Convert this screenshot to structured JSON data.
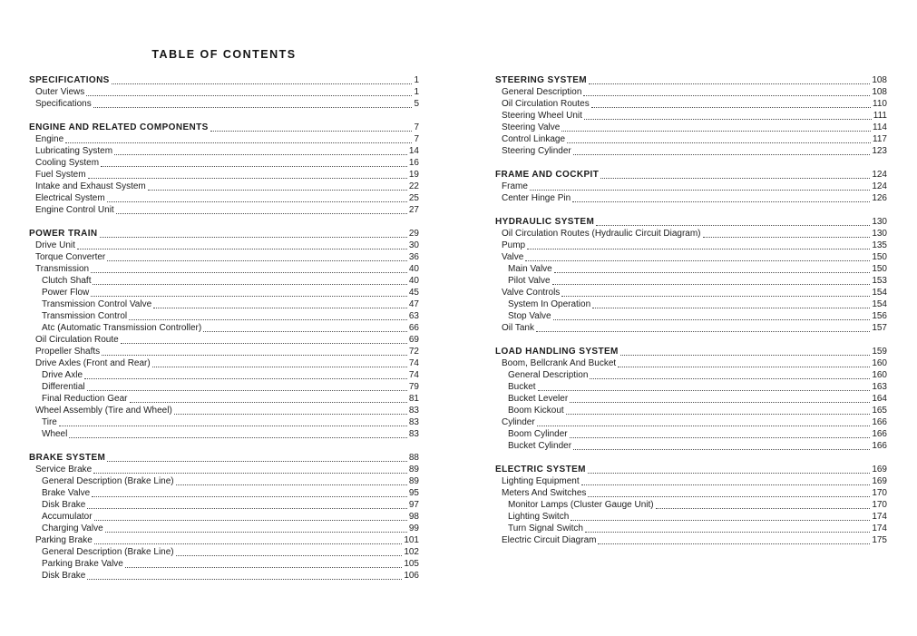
{
  "title": "TABLE OF CONTENTS",
  "columns": [
    {
      "sections": [
        {
          "entries": [
            {
              "label": "SPECIFICATIONS",
              "page": "1",
              "level": 0
            },
            {
              "label": "Outer Views",
              "page": "1",
              "level": 1
            },
            {
              "label": "Specifications",
              "page": "5",
              "level": 1
            }
          ]
        },
        {
          "entries": [
            {
              "label": "ENGINE AND RELATED COMPONENTS",
              "page": "7",
              "level": 0
            },
            {
              "label": "Engine",
              "page": "7",
              "level": 1
            },
            {
              "label": "Lubricating System",
              "page": "14",
              "level": 1
            },
            {
              "label": "Cooling System",
              "page": "16",
              "level": 1
            },
            {
              "label": "Fuel System",
              "page": "19",
              "level": 1
            },
            {
              "label": "Intake and Exhaust System",
              "page": "22",
              "level": 1
            },
            {
              "label": "Electrical System",
              "page": "25",
              "level": 1
            },
            {
              "label": "Engine Control Unit",
              "page": "27",
              "level": 1
            }
          ]
        },
        {
          "entries": [
            {
              "label": "POWER TRAIN",
              "page": "29",
              "level": 0
            },
            {
              "label": "Drive Unit",
              "page": "30",
              "level": 1
            },
            {
              "label": "Torque Converter",
              "page": "36",
              "level": 1
            },
            {
              "label": "Transmission",
              "page": "40",
              "level": 1
            },
            {
              "label": "Clutch Shaft",
              "page": "40",
              "level": 2
            },
            {
              "label": "Power Flow",
              "page": "45",
              "level": 2
            },
            {
              "label": "Transmission Control Valve",
              "page": "47",
              "level": 2
            },
            {
              "label": "Transmission Control",
              "page": "63",
              "level": 2
            },
            {
              "label": "Atc (Automatic Transmission Controller)",
              "page": "66",
              "level": 2
            },
            {
              "label": "Oil Circulation Route",
              "page": "69",
              "level": 1
            },
            {
              "label": "Propeller Shafts",
              "page": "72",
              "level": 1
            },
            {
              "label": "Drive Axles (Front and Rear)",
              "page": "74",
              "level": 1
            },
            {
              "label": "Drive Axle",
              "page": "74",
              "level": 2
            },
            {
              "label": "Differential",
              "page": "79",
              "level": 2
            },
            {
              "label": "Final Reduction Gear",
              "page": "81",
              "level": 2
            },
            {
              "label": "Wheel Assembly (Tire and Wheel)",
              "page": "83",
              "level": 1
            },
            {
              "label": "Tire",
              "page": "83",
              "level": 2
            },
            {
              "label": "Wheel",
              "page": "83",
              "level": 2
            }
          ]
        },
        {
          "entries": [
            {
              "label": "BRAKE SYSTEM",
              "page": "88",
              "level": 0
            },
            {
              "label": "Service Brake",
              "page": "89",
              "level": 1
            },
            {
              "label": "General Description (Brake Line)",
              "page": "89",
              "level": 2
            },
            {
              "label": "Brake Valve",
              "page": "95",
              "level": 2
            },
            {
              "label": "Disk Brake",
              "page": "97",
              "level": 2
            },
            {
              "label": "Accumulator",
              "page": "98",
              "level": 2
            },
            {
              "label": "Charging Valve",
              "page": "99",
              "level": 2
            },
            {
              "label": "Parking Brake",
              "page": "101",
              "level": 1
            },
            {
              "label": "General Description (Brake Line)",
              "page": "102",
              "level": 2
            },
            {
              "label": "Parking Brake Valve",
              "page": "105",
              "level": 2
            },
            {
              "label": "Disk Brake",
              "page": "106",
              "level": 2
            }
          ]
        }
      ]
    },
    {
      "sections": [
        {
          "entries": [
            {
              "label": "STEERING SYSTEM",
              "page": "108",
              "level": 0
            },
            {
              "label": "General Description",
              "page": "108",
              "level": 1
            },
            {
              "label": "Oil Circulation Routes",
              "page": "110",
              "level": 1
            },
            {
              "label": "Steering Wheel Unit",
              "page": "111",
              "level": 1
            },
            {
              "label": "Steering Valve",
              "page": "114",
              "level": 1
            },
            {
              "label": "Control Linkage",
              "page": "117",
              "level": 1
            },
            {
              "label": "Steering Cylinder",
              "page": "123",
              "level": 1
            }
          ]
        },
        {
          "entries": [
            {
              "label": "FRAME AND COCKPIT",
              "page": "124",
              "level": 0
            },
            {
              "label": "Frame",
              "page": "124",
              "level": 1
            },
            {
              "label": "Center Hinge Pin",
              "page": "126",
              "level": 1
            }
          ]
        },
        {
          "entries": [
            {
              "label": "HYDRAULIC SYSTEM",
              "page": "130",
              "level": 0
            },
            {
              "label": "Oil Circulation Routes (Hydraulic Circuit Diagram)",
              "page": "130",
              "level": 1
            },
            {
              "label": "Pump",
              "page": "135",
              "level": 1
            },
            {
              "label": "Valve",
              "page": "150",
              "level": 1
            },
            {
              "label": "Main Valve",
              "page": "150",
              "level": 2
            },
            {
              "label": "Pilot Valve",
              "page": "153",
              "level": 2
            },
            {
              "label": "Valve Controls",
              "page": "154",
              "level": 1
            },
            {
              "label": "System In Operation",
              "page": "154",
              "level": 2
            },
            {
              "label": "Stop Valve",
              "page": "156",
              "level": 2
            },
            {
              "label": "Oil Tank",
              "page": "157",
              "level": 1
            }
          ]
        },
        {
          "entries": [
            {
              "label": "LOAD HANDLING SYSTEM",
              "page": "159",
              "level": 0
            },
            {
              "label": "Boom, Bellcrank And Bucket",
              "page": "160",
              "level": 1
            },
            {
              "label": "General Description",
              "page": "160",
              "level": 2
            },
            {
              "label": "Bucket",
              "page": "163",
              "level": 2
            },
            {
              "label": "Bucket Leveler",
              "page": "164",
              "level": 2
            },
            {
              "label": "Boom Kickout",
              "page": "165",
              "level": 2
            },
            {
              "label": "Cylinder",
              "page": "166",
              "level": 1
            },
            {
              "label": "Boom Cylinder",
              "page": "166",
              "level": 2
            },
            {
              "label": "Bucket Cylinder",
              "page": "166",
              "level": 2
            }
          ]
        },
        {
          "entries": [
            {
              "label": "ELECTRIC SYSTEM",
              "page": "169",
              "level": 0
            },
            {
              "label": "Lighting Equipment",
              "page": "169",
              "level": 1
            },
            {
              "label": "Meters And Switches",
              "page": "170",
              "level": 1
            },
            {
              "label": "Monitor Lamps (Cluster Gauge Unit)",
              "page": "170",
              "level": 2
            },
            {
              "label": "Lighting Switch",
              "page": "174",
              "level": 2
            },
            {
              "label": "Turn Signal Switch",
              "page": "174",
              "level": 2
            },
            {
              "label": "Electric Circuit Diagram",
              "page": "175",
              "level": 1
            }
          ]
        }
      ]
    }
  ]
}
